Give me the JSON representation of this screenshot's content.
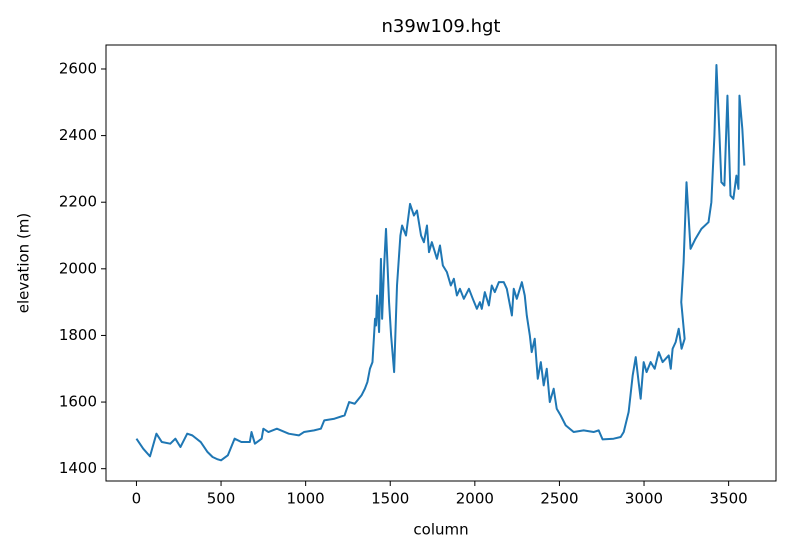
{
  "chart_data": {
    "type": "line",
    "title": "n39w109.hgt",
    "x_label": "column",
    "y_label": "elevation (m)",
    "color": "#1f77b4",
    "xlim": [
      -180,
      3780
    ],
    "ylim": [
      1363,
      2672
    ],
    "xticks": [
      0,
      500,
      1000,
      1500,
      2000,
      2500,
      3000,
      3500
    ],
    "yticks": [
      1400,
      1600,
      1800,
      2000,
      2200,
      2400,
      2600
    ],
    "x": [
      0,
      40,
      80,
      118,
      150,
      200,
      230,
      260,
      300,
      330,
      380,
      420,
      450,
      480,
      500,
      540,
      580,
      620,
      670,
      680,
      700,
      740,
      750,
      780,
      830,
      900,
      960,
      990,
      1050,
      1090,
      1110,
      1170,
      1230,
      1257,
      1290,
      1330,
      1350,
      1365,
      1380,
      1395,
      1410,
      1416,
      1422,
      1434,
      1445,
      1452,
      1463,
      1475,
      1493,
      1505,
      1523,
      1540,
      1560,
      1570,
      1593,
      1617,
      1640,
      1658,
      1682,
      1699,
      1717,
      1729,
      1746,
      1776,
      1794,
      1811,
      1835,
      1858,
      1876,
      1894,
      1912,
      1935,
      1965,
      1988,
      2012,
      2030,
      2041,
      2059,
      2083,
      2100,
      2118,
      2142,
      2171,
      2189,
      2219,
      2230,
      2248,
      2278,
      2295,
      2307,
      2325,
      2336,
      2354,
      2372,
      2390,
      2407,
      2425,
      2443,
      2466,
      2484,
      2507,
      2537,
      2584,
      2643,
      2702,
      2732,
      2755,
      2820,
      2862,
      2880,
      2909,
      2933,
      2951,
      2968,
      2980,
      2998,
      3015,
      3039,
      3063,
      3087,
      3110,
      3146,
      3158,
      3169,
      3187,
      3205,
      3222,
      3240,
      3220,
      3234,
      3251,
      3275,
      3304,
      3339,
      3381,
      3398,
      3416,
      3428,
      3446,
      3457,
      3475,
      3493,
      3511,
      3528,
      3546,
      3558,
      3564,
      3581,
      3593
    ],
    "values": [
      1490,
      1460,
      1437,
      1505,
      1480,
      1475,
      1490,
      1465,
      1505,
      1500,
      1480,
      1450,
      1435,
      1428,
      1425,
      1440,
      1490,
      1480,
      1480,
      1510,
      1475,
      1490,
      1520,
      1510,
      1520,
      1505,
      1500,
      1510,
      1515,
      1520,
      1545,
      1550,
      1560,
      1600,
      1595,
      1620,
      1640,
      1660,
      1700,
      1720,
      1850,
      1830,
      1920,
      1810,
      2030,
      1850,
      2000,
      2120,
      1900,
      1800,
      1690,
      1950,
      2100,
      2130,
      2100,
      2195,
      2160,
      2175,
      2100,
      2080,
      2130,
      2050,
      2080,
      2030,
      2070,
      2010,
      1990,
      1950,
      1970,
      1920,
      1940,
      1910,
      1940,
      1910,
      1880,
      1900,
      1880,
      1930,
      1890,
      1950,
      1930,
      1960,
      1960,
      1940,
      1860,
      1940,
      1910,
      1960,
      1920,
      1860,
      1800,
      1750,
      1790,
      1670,
      1720,
      1650,
      1700,
      1600,
      1640,
      1580,
      1560,
      1530,
      1510,
      1515,
      1510,
      1515,
      1488,
      1490,
      1495,
      1510,
      1570,
      1680,
      1735,
      1660,
      1610,
      1720,
      1690,
      1720,
      1700,
      1750,
      1720,
      1740,
      1700,
      1760,
      1780,
      1820,
      1760,
      1790,
      1900,
      2020,
      2260,
      2060,
      2090,
      2120,
      2140,
      2200,
      2400,
      2612,
      2400,
      2260,
      2250,
      2520,
      2220,
      2210,
      2280,
      2240,
      2520,
      2420,
      2310
    ]
  }
}
